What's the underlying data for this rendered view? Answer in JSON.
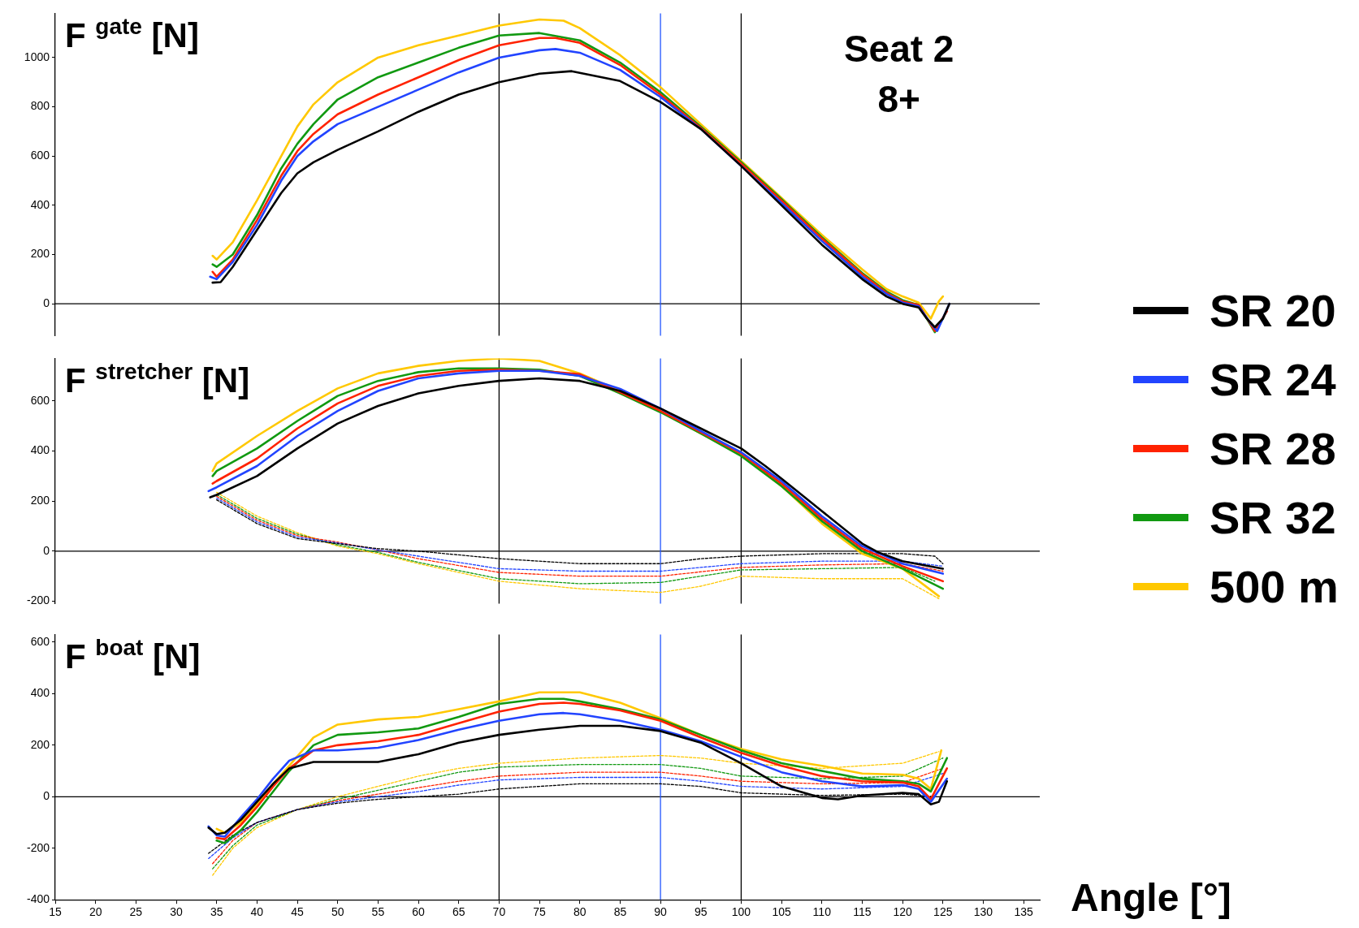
{
  "chart_data": [
    {
      "type": "line",
      "title": "F $^{gate}$ [N]",
      "annotations": [
        "Seat 2",
        "8+"
      ],
      "legend": "right",
      "marker": "none",
      "tick_labels": "y",
      "xlim": [
        15,
        137
      ],
      "xticks": [
        15,
        20,
        25,
        30,
        35,
        40,
        45,
        50,
        55,
        60,
        65,
        70,
        75,
        80,
        85,
        90,
        95,
        100,
        105,
        110,
        115,
        120,
        125,
        130,
        135
      ],
      "ylim": [
        -130,
        1180
      ],
      "yticks": [
        0,
        200,
        400,
        600,
        800,
        1000
      ],
      "ref_lines": [
        {
          "axis": "y",
          "value": 0,
          "color": "#000000"
        },
        {
          "axis": "x",
          "value": 70,
          "color": "#000000"
        },
        {
          "axis": "x",
          "value": 90,
          "color": "#2255ff"
        },
        {
          "axis": "x",
          "value": 100,
          "color": "#000000"
        }
      ],
      "series": [
        {
          "name": "SR 20",
          "color": "#000000",
          "line_style": "solid",
          "x": [
            34.5,
            35.5,
            37,
            40,
            43,
            45,
            47,
            50,
            55,
            60,
            65,
            70,
            75,
            79,
            85,
            90,
            95,
            100,
            105,
            110,
            115,
            118,
            120,
            122,
            123,
            124,
            125,
            125.8
          ],
          "values": [
            86,
            88,
            150,
            300,
            450,
            530,
            575,
            625,
            700,
            780,
            850,
            900,
            935,
            945,
            905,
            820,
            710,
            560,
            400,
            240,
            100,
            30,
            0,
            -15,
            -60,
            -95,
            -60,
            0
          ]
        },
        {
          "name": "SR 24",
          "color": "#2244ff",
          "line_style": "solid",
          "x": [
            34.2,
            35,
            37,
            40,
            43,
            45,
            47,
            50,
            55,
            60,
            65,
            70,
            75,
            77,
            80,
            85,
            90,
            95,
            100,
            105,
            110,
            115,
            118,
            120,
            122,
            123.5,
            124.3,
            125.8
          ],
          "values": [
            110,
            100,
            170,
            320,
            500,
            600,
            660,
            730,
            800,
            870,
            940,
            1000,
            1030,
            1035,
            1020,
            950,
            840,
            710,
            560,
            410,
            255,
            110,
            40,
            5,
            -10,
            -80,
            -110,
            0
          ]
        },
        {
          "name": "SR 28",
          "color": "#ff2200",
          "line_style": "solid",
          "x": [
            34.5,
            35,
            37,
            40,
            43,
            45,
            47,
            50,
            55,
            60,
            65,
            70,
            75,
            77,
            80,
            85,
            90,
            95,
            100,
            105,
            110,
            115,
            118,
            120,
            122,
            124,
            125.5
          ],
          "values": [
            130,
            110,
            180,
            340,
            520,
            620,
            690,
            770,
            850,
            920,
            990,
            1050,
            1080,
            1080,
            1060,
            970,
            850,
            715,
            570,
            420,
            265,
            120,
            45,
            10,
            -5,
            -110,
            -30
          ]
        },
        {
          "name": "SR 32",
          "color": "#119911",
          "line_style": "solid",
          "x": [
            34.5,
            35,
            37,
            40,
            43,
            45,
            47,
            50,
            55,
            60,
            65,
            70,
            75,
            80,
            85,
            90,
            95,
            100,
            105,
            110,
            115,
            118,
            120,
            122,
            124,
            125
          ],
          "values": [
            160,
            150,
            200,
            360,
            550,
            650,
            730,
            830,
            920,
            980,
            1040,
            1090,
            1100,
            1070,
            980,
            860,
            720,
            575,
            425,
            270,
            125,
            50,
            15,
            -5,
            -115,
            -60
          ]
        },
        {
          "name": "500 m",
          "color": "#ffc800",
          "line_style": "solid",
          "x": [
            34.5,
            35,
            37,
            40,
            43,
            45,
            47,
            50,
            55,
            60,
            65,
            70,
            75,
            78,
            80,
            85,
            90,
            95,
            100,
            105,
            110,
            115,
            118,
            120,
            122,
            123.5,
            124.5,
            125
          ],
          "values": [
            195,
            180,
            250,
            420,
            600,
            720,
            810,
            900,
            1000,
            1050,
            1090,
            1130,
            1155,
            1150,
            1120,
            1010,
            880,
            730,
            580,
            430,
            280,
            140,
            60,
            30,
            5,
            -60,
            10,
            30
          ]
        }
      ]
    },
    {
      "type": "line",
      "title": "F $^{stretcher}$ [N]",
      "marker": "none",
      "tick_labels": "y",
      "xlim": [
        15,
        137
      ],
      "xticks": [
        15,
        20,
        25,
        30,
        35,
        40,
        45,
        50,
        55,
        60,
        65,
        70,
        75,
        80,
        85,
        90,
        95,
        100,
        105,
        110,
        115,
        120,
        125,
        130,
        135
      ],
      "ylim": [
        -210,
        770
      ],
      "yticks": [
        -200,
        0,
        200,
        400,
        600
      ],
      "ref_lines": [
        {
          "axis": "y",
          "value": 0,
          "color": "#000000"
        },
        {
          "axis": "x",
          "value": 70,
          "color": "#000000"
        },
        {
          "axis": "x",
          "value": 90,
          "color": "#2255ff"
        },
        {
          "axis": "x",
          "value": 100,
          "color": "#000000"
        }
      ],
      "series": [
        {
          "color": "#000000",
          "line_style": "solid",
          "x": [
            34.2,
            35,
            40,
            45,
            50,
            55,
            60,
            65,
            70,
            75,
            80,
            85,
            90,
            95,
            100,
            103,
            105,
            110,
            115,
            117,
            120,
            125
          ],
          "values": [
            215,
            225,
            300,
            410,
            510,
            580,
            630,
            660,
            680,
            690,
            680,
            640,
            570,
            490,
            410,
            340,
            290,
            160,
            30,
            -5,
            -40,
            -70
          ]
        },
        {
          "color": "#2244ff",
          "line_style": "solid",
          "x": [
            34,
            35,
            40,
            45,
            50,
            55,
            60,
            65,
            70,
            75,
            80,
            85,
            90,
            95,
            100,
            105,
            110,
            115,
            120,
            125
          ],
          "values": [
            240,
            255,
            340,
            460,
            560,
            640,
            690,
            710,
            720,
            720,
            700,
            648,
            570,
            480,
            395,
            280,
            140,
            20,
            -50,
            -90
          ]
        },
        {
          "color": "#ff2200",
          "line_style": "solid",
          "x": [
            34.5,
            35,
            40,
            45,
            50,
            55,
            60,
            65,
            70,
            75,
            80,
            85,
            90,
            95,
            100,
            105,
            110,
            115,
            120,
            125
          ],
          "values": [
            270,
            280,
            370,
            490,
            590,
            660,
            700,
            720,
            725,
            720,
            707,
            635,
            560,
            475,
            390,
            270,
            130,
            10,
            -60,
            -120
          ]
        },
        {
          "color": "#119911",
          "line_style": "solid",
          "x": [
            34.5,
            35,
            40,
            45,
            50,
            55,
            60,
            65,
            70,
            75,
            80,
            85,
            90,
            95,
            100,
            105,
            110,
            115,
            120,
            125
          ],
          "values": [
            300,
            320,
            410,
            520,
            620,
            680,
            715,
            730,
            730,
            725,
            700,
            630,
            555,
            470,
            380,
            260,
            120,
            0,
            -70,
            -150
          ]
        },
        {
          "color": "#ffc800",
          "line_style": "solid",
          "x": [
            34.5,
            35,
            40,
            45,
            50,
            55,
            60,
            65,
            70,
            75,
            80,
            85,
            90,
            95,
            100,
            105,
            110,
            115,
            120,
            124.5
          ],
          "values": [
            320,
            350,
            460,
            560,
            650,
            710,
            740,
            760,
            770,
            760,
            710,
            640,
            560,
            470,
            385,
            260,
            110,
            -10,
            -70,
            -180
          ]
        },
        {
          "color": "#000000",
          "line_style": "dashed",
          "x": [
            35,
            40,
            45,
            50,
            55,
            60,
            70,
            80,
            90,
            95,
            100,
            110,
            120,
            124,
            125
          ],
          "values": [
            205,
            110,
            50,
            30,
            10,
            0,
            -30,
            -50,
            -50,
            -30,
            -20,
            -10,
            -10,
            -20,
            -50
          ]
        },
        {
          "color": "#2244ff",
          "line_style": "dashed",
          "x": [
            35,
            40,
            45,
            50,
            55,
            60,
            70,
            80,
            90,
            100,
            110,
            120,
            125
          ],
          "values": [
            212,
            117,
            56,
            33,
            5,
            -20,
            -70,
            -80,
            -80,
            -50,
            -40,
            -40,
            -60
          ]
        },
        {
          "color": "#ff2200",
          "line_style": "dashed",
          "x": [
            35,
            40,
            45,
            50,
            55,
            60,
            70,
            80,
            90,
            100,
            110,
            120,
            125
          ],
          "values": [
            219,
            124,
            62,
            36,
            5,
            -30,
            -85,
            -100,
            -100,
            -65,
            -55,
            -50,
            -80
          ]
        },
        {
          "color": "#119911",
          "line_style": "dashed",
          "x": [
            35,
            40,
            45,
            50,
            55,
            60,
            70,
            80,
            90,
            95,
            100,
            110,
            120,
            124
          ],
          "values": [
            226,
            131,
            68,
            25,
            -5,
            -45,
            -110,
            -130,
            -125,
            -100,
            -75,
            -70,
            -65,
            -120
          ]
        },
        {
          "color": "#ffc800",
          "line_style": "dashed",
          "x": [
            35,
            40,
            45,
            50,
            55,
            60,
            70,
            80,
            90,
            95,
            100,
            110,
            120,
            124.5
          ],
          "values": [
            235,
            140,
            74,
            20,
            -10,
            -50,
            -120,
            -150,
            -165,
            -140,
            -100,
            -110,
            -110,
            -190
          ]
        }
      ]
    },
    {
      "type": "line",
      "title": "F $^{boat}$ [N]",
      "xlabel": "Angle [°]",
      "marker": "none",
      "xlim": [
        15,
        137
      ],
      "xticks": [
        15,
        20,
        25,
        30,
        35,
        40,
        45,
        50,
        55,
        60,
        65,
        70,
        75,
        80,
        85,
        90,
        95,
        100,
        105,
        110,
        115,
        120,
        125,
        130,
        135
      ],
      "ylim": [
        -400,
        630
      ],
      "yticks": [
        -400,
        -200,
        0,
        200,
        400,
        600
      ],
      "ref_lines": [
        {
          "axis": "y",
          "value": 0,
          "color": "#000000"
        },
        {
          "axis": "x",
          "value": 70,
          "color": "#000000"
        },
        {
          "axis": "x",
          "value": 90,
          "color": "#2255ff"
        },
        {
          "axis": "x",
          "value": 100,
          "color": "#000000"
        }
      ],
      "series": [
        {
          "color": "#000000",
          "line_style": "solid",
          "x": [
            34,
            35,
            36,
            38,
            40,
            42,
            44,
            47,
            50,
            55,
            60,
            65,
            70,
            75,
            80,
            85,
            90,
            95,
            100,
            105,
            110,
            112,
            115,
            120,
            122,
            123.5,
            124.5,
            125.5
          ],
          "values": [
            -120,
            -145,
            -140,
            -90,
            -20,
            50,
            110,
            135,
            135,
            135,
            165,
            210,
            240,
            260,
            275,
            275,
            255,
            210,
            130,
            40,
            -5,
            -10,
            5,
            15,
            10,
            -30,
            -20,
            60
          ]
        },
        {
          "color": "#2244ff",
          "line_style": "solid",
          "x": [
            34,
            35,
            36,
            38,
            40,
            42,
            44,
            47,
            50,
            55,
            60,
            65,
            70,
            75,
            78,
            80,
            85,
            90,
            95,
            100,
            105,
            110,
            115,
            120,
            122,
            123.5,
            125.5
          ],
          "values": [
            -115,
            -150,
            -155,
            -80,
            -10,
            70,
            140,
            180,
            180,
            190,
            220,
            260,
            295,
            320,
            325,
            320,
            295,
            260,
            215,
            155,
            95,
            60,
            40,
            45,
            30,
            -20,
            70
          ]
        },
        {
          "color": "#ff2200",
          "line_style": "solid",
          "x": [
            35,
            36,
            38,
            40,
            42,
            44,
            47,
            50,
            55,
            60,
            65,
            70,
            75,
            78,
            80,
            85,
            90,
            95,
            100,
            105,
            110,
            115,
            120,
            122,
            123.5,
            125.5
          ],
          "values": [
            -160,
            -165,
            -110,
            -40,
            40,
            110,
            180,
            200,
            215,
            240,
            285,
            330,
            360,
            365,
            360,
            335,
            295,
            230,
            170,
            120,
            80,
            60,
            55,
            40,
            -10,
            110
          ]
        },
        {
          "color": "#119911",
          "line_style": "solid",
          "x": [
            35,
            36,
            38,
            40,
            42,
            44,
            47,
            50,
            55,
            60,
            65,
            70,
            75,
            78,
            80,
            85,
            90,
            95,
            100,
            105,
            110,
            115,
            120,
            122,
            123.5,
            125.5
          ],
          "values": [
            -170,
            -180,
            -130,
            -60,
            20,
            100,
            200,
            240,
            250,
            265,
            310,
            360,
            380,
            380,
            370,
            340,
            300,
            240,
            180,
            130,
            100,
            70,
            60,
            50,
            20,
            150
          ]
        },
        {
          "color": "#ffc800",
          "line_style": "solid",
          "x": [
            35,
            36,
            38,
            40,
            42,
            44,
            47,
            50,
            55,
            60,
            65,
            70,
            75,
            80,
            85,
            90,
            95,
            100,
            105,
            110,
            115,
            120,
            122,
            123.5,
            124.8
          ],
          "values": [
            -125,
            -140,
            -100,
            -30,
            50,
            120,
            230,
            280,
            300,
            310,
            340,
            370,
            405,
            405,
            365,
            305,
            240,
            185,
            145,
            120,
            90,
            85,
            70,
            30,
            180
          ]
        },
        {
          "color": "#000000",
          "line_style": "dashed",
          "x": [
            34,
            37,
            40,
            45,
            50,
            55,
            60,
            65,
            70,
            80,
            90,
            95,
            100,
            110,
            120,
            124
          ],
          "values": [
            -220,
            -150,
            -100,
            -50,
            -25,
            -10,
            0,
            10,
            30,
            50,
            50,
            40,
            15,
            5,
            10,
            0
          ]
        },
        {
          "color": "#2244ff",
          "line_style": "dashed",
          "x": [
            34,
            37,
            40,
            45,
            50,
            55,
            60,
            65,
            70,
            80,
            90,
            95,
            100,
            110,
            120,
            125
          ],
          "values": [
            -240,
            -160,
            -100,
            -50,
            -20,
            0,
            20,
            45,
            65,
            75,
            75,
            60,
            40,
            30,
            40,
            90
          ]
        },
        {
          "color": "#ff2200",
          "line_style": "dashed",
          "x": [
            34.5,
            37,
            40,
            45,
            50,
            55,
            60,
            65,
            70,
            80,
            90,
            95,
            100,
            110,
            120,
            125
          ],
          "values": [
            -260,
            -170,
            -100,
            -50,
            -15,
            10,
            35,
            60,
            80,
            95,
            95,
            80,
            60,
            50,
            55,
            110
          ]
        },
        {
          "color": "#119911",
          "line_style": "dashed",
          "x": [
            34.5,
            37,
            40,
            45,
            50,
            55,
            60,
            65,
            70,
            80,
            90,
            95,
            100,
            110,
            120,
            125
          ],
          "values": [
            -280,
            -190,
            -110,
            -50,
            -10,
            25,
            60,
            95,
            115,
            125,
            125,
            110,
            80,
            70,
            80,
            150
          ]
        },
        {
          "color": "#ffc800",
          "line_style": "dashed",
          "x": [
            34.5,
            37,
            40,
            45,
            50,
            55,
            60,
            65,
            70,
            80,
            90,
            95,
            100,
            110,
            120,
            124.5
          ],
          "values": [
            -305,
            -200,
            -120,
            -50,
            0,
            40,
            80,
            110,
            130,
            150,
            160,
            150,
            130,
            110,
            130,
            175
          ]
        }
      ]
    }
  ]
}
